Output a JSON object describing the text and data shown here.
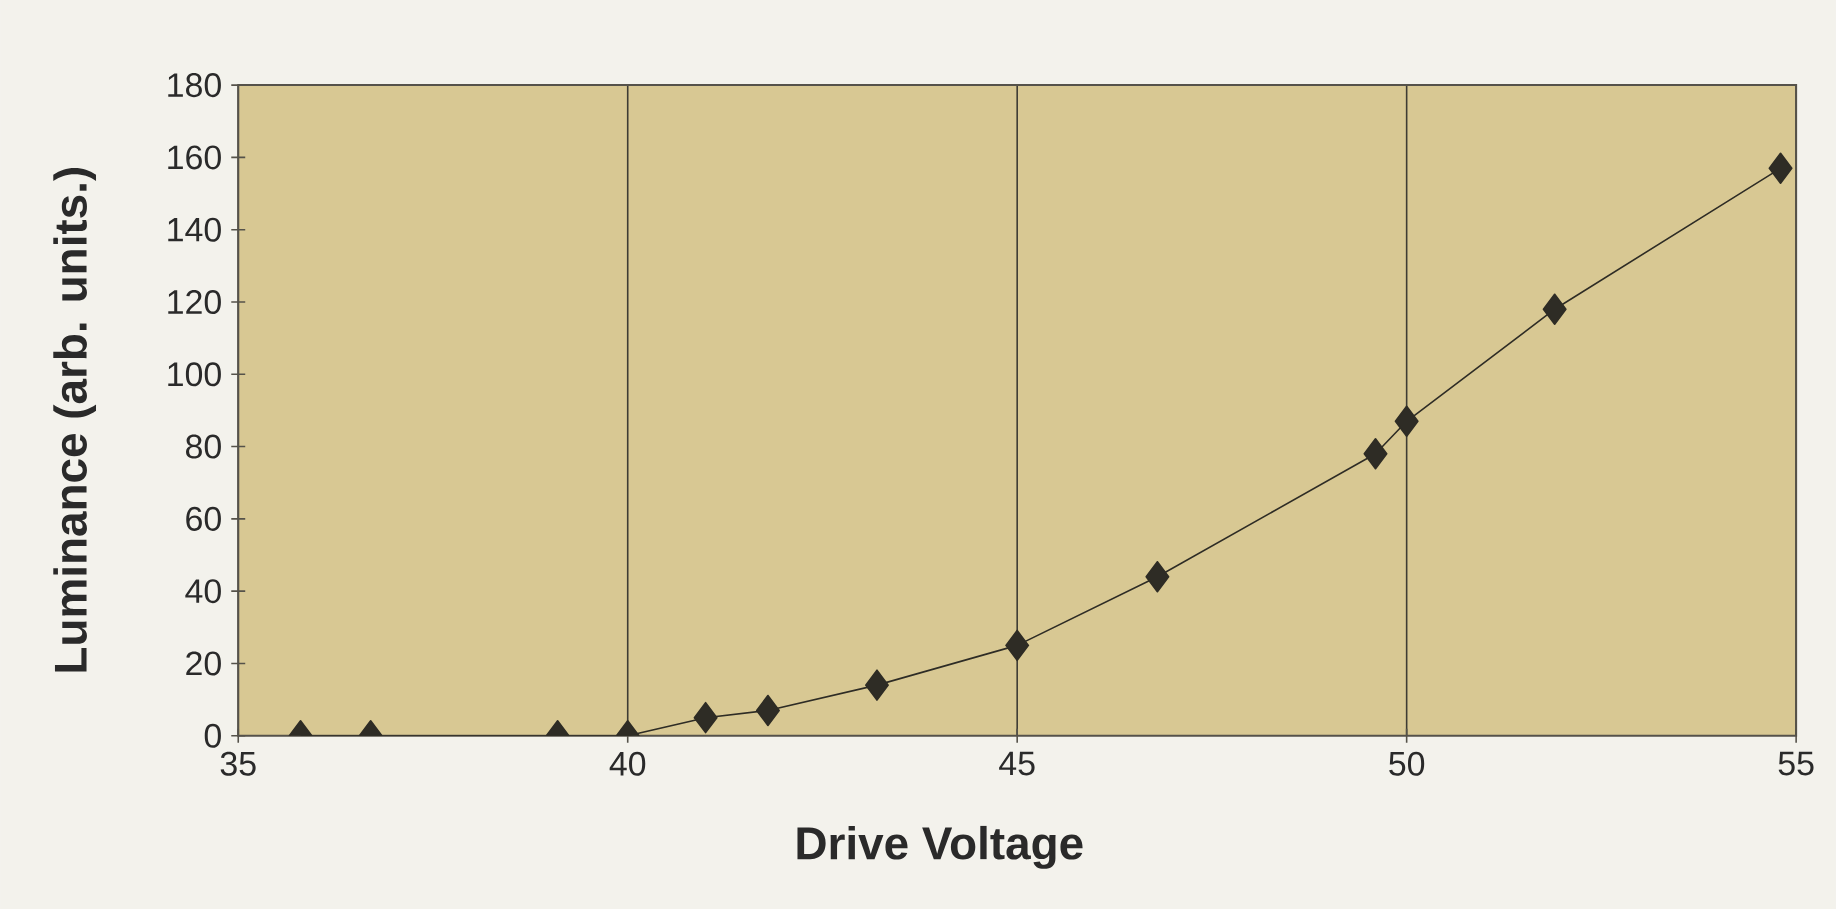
{
  "chart_data": {
    "type": "line",
    "xlabel": "Drive Voltage",
    "ylabel": "Luminance (arb. units.)",
    "x": [
      35.8,
      36.7,
      39.1,
      40,
      41,
      41.8,
      43.2,
      45,
      46.8,
      49.6,
      50,
      51.9,
      54.8
    ],
    "series": [
      {
        "color": "#2e2c25",
        "values": [
          0,
          0,
          0,
          0,
          5,
          7,
          14,
          25,
          44,
          78,
          87,
          118,
          157
        ]
      }
    ],
    "xlim": [
      35,
      55
    ],
    "ylim": [
      0,
      180
    ],
    "xticks": [
      35,
      40,
      45,
      50,
      55
    ],
    "yticks": [
      0,
      20,
      40,
      60,
      80,
      100,
      120,
      140,
      160,
      180
    ],
    "grid": "x",
    "marker": "diamond",
    "line_style": "solid"
  }
}
